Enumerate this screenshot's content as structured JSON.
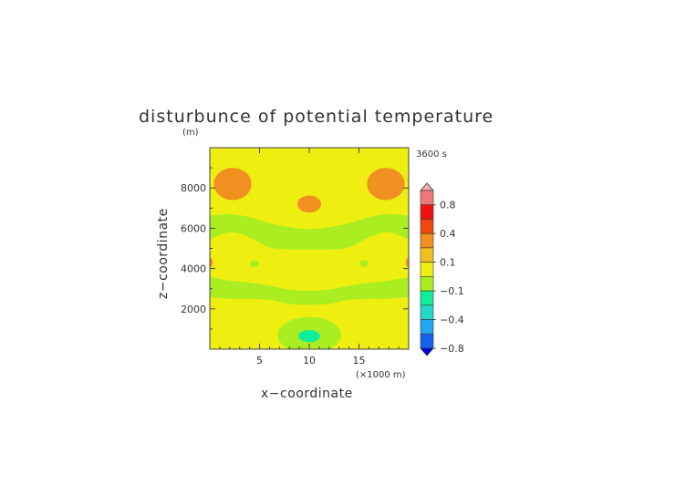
{
  "chart_data": {
    "type": "heatmap",
    "title": "disturbunce of potential temperature",
    "xlabel": "x−coordinate",
    "ylabel": "z−coordinate",
    "y_unit": "(m)",
    "x_unit": "(×1000 m)",
    "time_label": "3600 s",
    "xlim": [
      0,
      20
    ],
    "ylim": [
      0,
      10000
    ],
    "x_ticks": [
      5,
      10,
      15
    ],
    "x_tick_labels": [
      "5",
      "10",
      "15"
    ],
    "y_ticks": [
      2000,
      4000,
      6000,
      8000
    ],
    "y_tick_labels": [
      "2000",
      "4000",
      "6000",
      "8000"
    ],
    "colorbar": {
      "levels": [
        -1.0,
        -0.8,
        -0.6,
        -0.4,
        -0.2,
        -0.1,
        0,
        0.1,
        0.2,
        0.4,
        0.6,
        0.8,
        1.0
      ],
      "colors": [
        "#0000dd",
        "#1560f0",
        "#22a8f0",
        "#22d8c8",
        "#11ee99",
        "#aaee22",
        "#eeee11",
        "#f0c020",
        "#f09020",
        "#f04810",
        "#f01010",
        "#f07878",
        "#f4b0b0"
      ],
      "labels": [
        "0.8",
        "0.4",
        "0.1",
        "−0.1",
        "−0.4",
        "−0.8"
      ],
      "label_values": [
        0.8,
        0.4,
        0.1,
        -0.1,
        -0.4,
        -0.8
      ],
      "extend": "both"
    },
    "background_color": "#eeee11",
    "regions": [
      {
        "value": -0.15,
        "shape": "band",
        "x_range": [
          0,
          20
        ],
        "center": [
          [
            0,
            6000
          ],
          [
            2,
            6250
          ],
          [
            4,
            6050
          ],
          [
            6,
            5650
          ],
          [
            8,
            5500
          ],
          [
            10,
            5450
          ],
          [
            12,
            5500
          ],
          [
            14,
            5650
          ],
          [
            16,
            6050
          ],
          [
            18,
            6250
          ],
          [
            20,
            6000
          ]
        ],
        "half_width": [
          [
            0,
            600
          ],
          [
            2,
            450
          ],
          [
            4,
            500
          ],
          [
            6,
            600
          ],
          [
            8,
            550
          ],
          [
            10,
            500
          ],
          [
            12,
            550
          ],
          [
            14,
            600
          ],
          [
            16,
            500
          ],
          [
            18,
            450
          ],
          [
            20,
            600
          ]
        ]
      },
      {
        "value": -0.15,
        "shape": "band",
        "x_range": [
          0,
          20
        ],
        "center": [
          [
            0,
            3100
          ],
          [
            2,
            2950
          ],
          [
            4,
            2900
          ],
          [
            6,
            2800
          ],
          [
            8,
            2600
          ],
          [
            10,
            2550
          ],
          [
            12,
            2600
          ],
          [
            14,
            2800
          ],
          [
            16,
            2900
          ],
          [
            18,
            2950
          ],
          [
            20,
            3100
          ]
        ],
        "half_width": [
          [
            0,
            500
          ],
          [
            2,
            450
          ],
          [
            4,
            400
          ],
          [
            6,
            350
          ],
          [
            8,
            350
          ],
          [
            10,
            350
          ],
          [
            12,
            350
          ],
          [
            14,
            350
          ],
          [
            16,
            400
          ],
          [
            18,
            450
          ],
          [
            20,
            500
          ]
        ]
      },
      {
        "value": -0.15,
        "shape": "ellipse",
        "cx": 10,
        "cy": 700,
        "rx": 3.2,
        "ry": 900
      },
      {
        "value": -0.3,
        "shape": "ellipse",
        "cx": 10,
        "cy": 650,
        "rx": 1.1,
        "ry": 300
      },
      {
        "value": -0.15,
        "shape": "ellipse",
        "cx": 4.5,
        "cy": 4250,
        "rx": 0.45,
        "ry": 170
      },
      {
        "value": -0.15,
        "shape": "ellipse",
        "cx": 15.5,
        "cy": 4250,
        "rx": 0.45,
        "ry": 170
      },
      {
        "value": 0.15,
        "shape": "ellipse",
        "cx": 2.3,
        "cy": 8200,
        "rx": 1.9,
        "ry": 800
      },
      {
        "value": 0.15,
        "shape": "ellipse",
        "cx": 17.7,
        "cy": 8200,
        "rx": 1.9,
        "ry": 800
      },
      {
        "value": 0.15,
        "shape": "ellipse",
        "cx": 10,
        "cy": 7200,
        "rx": 1.2,
        "ry": 420
      },
      {
        "value": 0.15,
        "shape": "ellipse",
        "cx": 0,
        "cy": 4300,
        "rx": 0.3,
        "ry": 250
      },
      {
        "value": 0.15,
        "shape": "ellipse",
        "cx": 20,
        "cy": 4300,
        "rx": 0.3,
        "ry": 250
      }
    ]
  }
}
